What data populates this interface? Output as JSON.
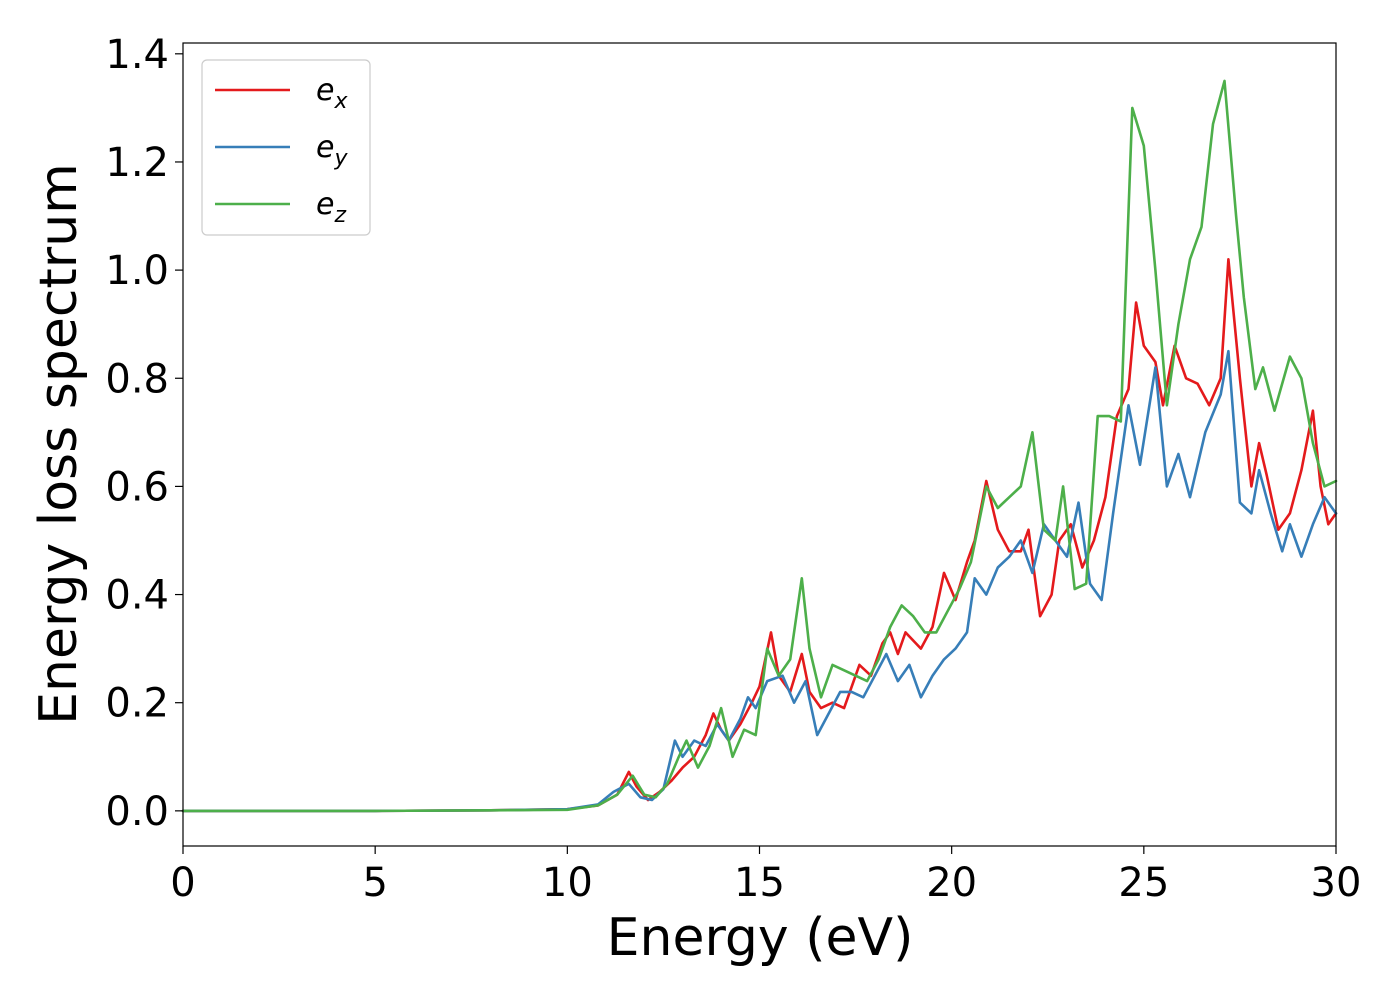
{
  "chart_data": {
    "type": "line",
    "title": "",
    "xlabel": "Energy (eV)",
    "ylabel": "Energy loss spectrum",
    "xlim": [
      0,
      30
    ],
    "ylim": [
      -0.065,
      1.42
    ],
    "xticks": [
      0,
      5,
      10,
      15,
      20,
      25,
      30
    ],
    "yticks": [
      0.0,
      0.2,
      0.4,
      0.6,
      0.8,
      1.0,
      1.2,
      1.4
    ],
    "xtick_labels": [
      "0",
      "5",
      "10",
      "15",
      "20",
      "25",
      "30"
    ],
    "ytick_labels": [
      "0.0",
      "0.2",
      "0.4",
      "0.6",
      "0.8",
      "1.0",
      "1.2",
      "1.4"
    ],
    "grid": false,
    "legend_position": "top-left",
    "series": [
      {
        "name": "e_x",
        "base": "e",
        "sub": "x",
        "color": "#e41a1c",
        "points": [
          [
            0,
            0
          ],
          [
            5,
            0
          ],
          [
            8,
            0.001
          ],
          [
            10,
            0.003
          ],
          [
            10.8,
            0.01
          ],
          [
            11.3,
            0.03
          ],
          [
            11.6,
            0.072
          ],
          [
            11.8,
            0.045
          ],
          [
            12.1,
            0.02
          ],
          [
            12.4,
            0.035
          ],
          [
            12.7,
            0.055
          ],
          [
            13.0,
            0.08
          ],
          [
            13.3,
            0.1
          ],
          [
            13.6,
            0.14
          ],
          [
            13.8,
            0.18
          ],
          [
            14.0,
            0.15
          ],
          [
            14.2,
            0.13
          ],
          [
            14.5,
            0.16
          ],
          [
            14.8,
            0.2
          ],
          [
            15.0,
            0.23
          ],
          [
            15.3,
            0.33
          ],
          [
            15.5,
            0.25
          ],
          [
            15.8,
            0.22
          ],
          [
            16.1,
            0.29
          ],
          [
            16.3,
            0.22
          ],
          [
            16.6,
            0.19
          ],
          [
            16.9,
            0.2
          ],
          [
            17.2,
            0.19
          ],
          [
            17.6,
            0.27
          ],
          [
            17.9,
            0.25
          ],
          [
            18.2,
            0.31
          ],
          [
            18.4,
            0.33
          ],
          [
            18.6,
            0.29
          ],
          [
            18.8,
            0.33
          ],
          [
            19.2,
            0.3
          ],
          [
            19.5,
            0.34
          ],
          [
            19.8,
            0.44
          ],
          [
            20.1,
            0.39
          ],
          [
            20.4,
            0.46
          ],
          [
            20.6,
            0.5
          ],
          [
            20.9,
            0.61
          ],
          [
            21.2,
            0.52
          ],
          [
            21.5,
            0.48
          ],
          [
            21.8,
            0.48
          ],
          [
            22.0,
            0.52
          ],
          [
            22.3,
            0.36
          ],
          [
            22.6,
            0.4
          ],
          [
            22.8,
            0.5
          ],
          [
            23.1,
            0.53
          ],
          [
            23.4,
            0.45
          ],
          [
            23.7,
            0.5
          ],
          [
            24.0,
            0.58
          ],
          [
            24.3,
            0.73
          ],
          [
            24.6,
            0.78
          ],
          [
            24.8,
            0.94
          ],
          [
            25.0,
            0.86
          ],
          [
            25.3,
            0.83
          ],
          [
            25.5,
            0.75
          ],
          [
            25.8,
            0.86
          ],
          [
            26.1,
            0.8
          ],
          [
            26.4,
            0.79
          ],
          [
            26.7,
            0.75
          ],
          [
            27.0,
            0.8
          ],
          [
            27.2,
            1.02
          ],
          [
            27.5,
            0.8
          ],
          [
            27.8,
            0.6
          ],
          [
            28.0,
            0.68
          ],
          [
            28.2,
            0.62
          ],
          [
            28.5,
            0.52
          ],
          [
            28.8,
            0.55
          ],
          [
            29.1,
            0.63
          ],
          [
            29.4,
            0.74
          ],
          [
            29.6,
            0.6
          ],
          [
            29.8,
            0.53
          ],
          [
            30.0,
            0.55
          ]
        ]
      },
      {
        "name": "e_y",
        "base": "e",
        "sub": "y",
        "color": "#377eb8",
        "points": [
          [
            0,
            0
          ],
          [
            5,
            0
          ],
          [
            8,
            0.001
          ],
          [
            10,
            0.003
          ],
          [
            10.8,
            0.012
          ],
          [
            11.2,
            0.035
          ],
          [
            11.6,
            0.05
          ],
          [
            11.9,
            0.025
          ],
          [
            12.2,
            0.02
          ],
          [
            12.5,
            0.04
          ],
          [
            12.8,
            0.13
          ],
          [
            13.0,
            0.1
          ],
          [
            13.3,
            0.13
          ],
          [
            13.6,
            0.12
          ],
          [
            13.9,
            0.16
          ],
          [
            14.2,
            0.13
          ],
          [
            14.5,
            0.17
          ],
          [
            14.7,
            0.21
          ],
          [
            14.9,
            0.19
          ],
          [
            15.2,
            0.24
          ],
          [
            15.6,
            0.25
          ],
          [
            15.9,
            0.2
          ],
          [
            16.2,
            0.24
          ],
          [
            16.5,
            0.14
          ],
          [
            16.8,
            0.18
          ],
          [
            17.1,
            0.22
          ],
          [
            17.4,
            0.22
          ],
          [
            17.7,
            0.21
          ],
          [
            18.0,
            0.25
          ],
          [
            18.3,
            0.29
          ],
          [
            18.6,
            0.24
          ],
          [
            18.9,
            0.27
          ],
          [
            19.2,
            0.21
          ],
          [
            19.5,
            0.25
          ],
          [
            19.8,
            0.28
          ],
          [
            20.1,
            0.3
          ],
          [
            20.4,
            0.33
          ],
          [
            20.6,
            0.43
          ],
          [
            20.9,
            0.4
          ],
          [
            21.2,
            0.45
          ],
          [
            21.5,
            0.47
          ],
          [
            21.8,
            0.5
          ],
          [
            22.1,
            0.44
          ],
          [
            22.4,
            0.53
          ],
          [
            22.7,
            0.5
          ],
          [
            23.0,
            0.47
          ],
          [
            23.3,
            0.57
          ],
          [
            23.6,
            0.42
          ],
          [
            23.9,
            0.39
          ],
          [
            24.2,
            0.55
          ],
          [
            24.6,
            0.75
          ],
          [
            24.9,
            0.64
          ],
          [
            25.3,
            0.82
          ],
          [
            25.6,
            0.6
          ],
          [
            25.9,
            0.66
          ],
          [
            26.2,
            0.58
          ],
          [
            26.6,
            0.7
          ],
          [
            27.0,
            0.77
          ],
          [
            27.2,
            0.85
          ],
          [
            27.5,
            0.57
          ],
          [
            27.8,
            0.55
          ],
          [
            28.0,
            0.63
          ],
          [
            28.3,
            0.55
          ],
          [
            28.6,
            0.48
          ],
          [
            28.8,
            0.53
          ],
          [
            29.1,
            0.47
          ],
          [
            29.4,
            0.53
          ],
          [
            29.7,
            0.58
          ],
          [
            30.0,
            0.55
          ]
        ]
      },
      {
        "name": "e_z",
        "base": "e",
        "sub": "z",
        "color": "#4daf4a",
        "points": [
          [
            0,
            0
          ],
          [
            5,
            0
          ],
          [
            8,
            0.001
          ],
          [
            10,
            0.002
          ],
          [
            10.8,
            0.01
          ],
          [
            11.3,
            0.03
          ],
          [
            11.7,
            0.065
          ],
          [
            12.0,
            0.03
          ],
          [
            12.3,
            0.025
          ],
          [
            12.6,
            0.05
          ],
          [
            12.9,
            0.1
          ],
          [
            13.1,
            0.13
          ],
          [
            13.4,
            0.08
          ],
          [
            13.7,
            0.12
          ],
          [
            14.0,
            0.19
          ],
          [
            14.3,
            0.1
          ],
          [
            14.6,
            0.15
          ],
          [
            14.9,
            0.14
          ],
          [
            15.2,
            0.3
          ],
          [
            15.5,
            0.25
          ],
          [
            15.8,
            0.28
          ],
          [
            16.1,
            0.43
          ],
          [
            16.3,
            0.3
          ],
          [
            16.6,
            0.21
          ],
          [
            16.9,
            0.27
          ],
          [
            17.2,
            0.26
          ],
          [
            17.5,
            0.25
          ],
          [
            17.8,
            0.24
          ],
          [
            18.1,
            0.28
          ],
          [
            18.4,
            0.34
          ],
          [
            18.7,
            0.38
          ],
          [
            19.0,
            0.36
          ],
          [
            19.3,
            0.33
          ],
          [
            19.6,
            0.33
          ],
          [
            19.9,
            0.37
          ],
          [
            20.2,
            0.41
          ],
          [
            20.5,
            0.46
          ],
          [
            20.9,
            0.6
          ],
          [
            21.2,
            0.56
          ],
          [
            21.5,
            0.58
          ],
          [
            21.8,
            0.6
          ],
          [
            22.1,
            0.7
          ],
          [
            22.4,
            0.52
          ],
          [
            22.7,
            0.5
          ],
          [
            22.9,
            0.6
          ],
          [
            23.2,
            0.41
          ],
          [
            23.5,
            0.42
          ],
          [
            23.8,
            0.73
          ],
          [
            24.1,
            0.73
          ],
          [
            24.4,
            0.72
          ],
          [
            24.7,
            1.3
          ],
          [
            25.0,
            1.23
          ],
          [
            25.3,
            1.0
          ],
          [
            25.6,
            0.75
          ],
          [
            25.9,
            0.9
          ],
          [
            26.2,
            1.02
          ],
          [
            26.5,
            1.08
          ],
          [
            26.8,
            1.27
          ],
          [
            27.1,
            1.35
          ],
          [
            27.4,
            1.1
          ],
          [
            27.6,
            0.95
          ],
          [
            27.9,
            0.78
          ],
          [
            28.1,
            0.82
          ],
          [
            28.4,
            0.74
          ],
          [
            28.8,
            0.84
          ],
          [
            29.1,
            0.8
          ],
          [
            29.4,
            0.68
          ],
          [
            29.7,
            0.6
          ],
          [
            30.0,
            0.61
          ]
        ]
      }
    ]
  }
}
